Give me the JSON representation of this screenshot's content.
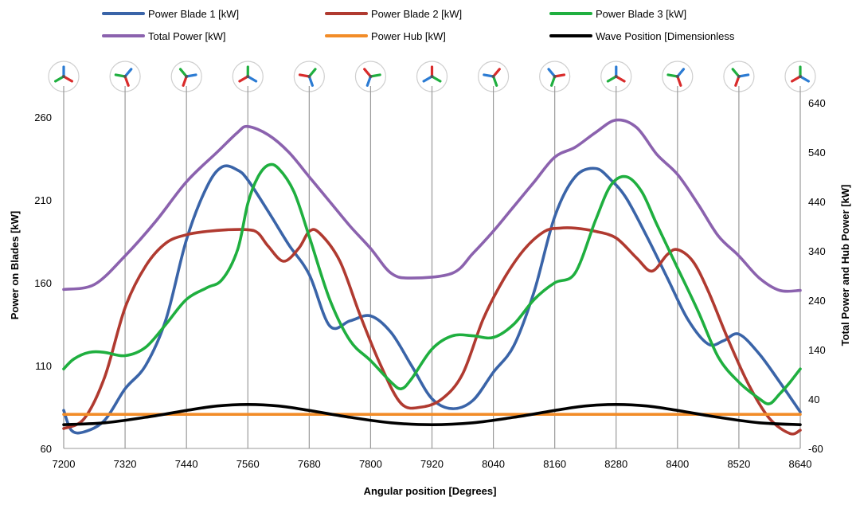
{
  "chart_data": {
    "type": "line",
    "xlabel": "Angular position [Degrees]",
    "ylabel_left": "Power on Blades [kW]",
    "ylabel_right": "Total Power and Hub Power [kW]",
    "xlim": [
      7200,
      8640
    ],
    "ylim_left": [
      60,
      280
    ],
    "ylim_right": [
      -60,
      640
    ],
    "x_ticks": [
      7200,
      7320,
      7440,
      7560,
      7680,
      7800,
      7920,
      8040,
      8160,
      8280,
      8400,
      8520,
      8640
    ],
    "y_left_ticks": [
      60,
      110,
      160,
      210,
      260
    ],
    "y_right_ticks": [
      -60,
      40,
      140,
      240,
      340,
      440,
      540,
      640
    ],
    "grid_x": true,
    "legend_position": "top",
    "turbine_icons": 13,
    "series": [
      {
        "name": "Power Blade 1 [kW]",
        "color": "#3A64A8",
        "axis": "left",
        "x": [
          7200,
          7215,
          7240,
          7280,
          7320,
          7360,
          7400,
          7440,
          7480,
          7510,
          7540,
          7560,
          7600,
          7640,
          7680,
          7720,
          7760,
          7800,
          7840,
          7880,
          7920,
          7960,
          8000,
          8040,
          8080,
          8120,
          8160,
          8200,
          8240,
          8270,
          8300,
          8340,
          8380,
          8420,
          8460,
          8490,
          8520,
          8560,
          8600,
          8640
        ],
        "values": [
          83,
          71,
          70,
          77,
          96,
          110,
          138,
          186,
          218,
          230,
          228,
          222,
          203,
          183,
          165,
          134,
          137,
          140,
          130,
          110,
          90,
          84,
          89,
          106,
          122,
          155,
          200,
          224,
          229,
          222,
          211,
          188,
          163,
          138,
          123,
          125,
          129,
          117,
          100,
          82
        ]
      },
      {
        "name": "Power Blade 2 [kW]",
        "color": "#B03A30",
        "axis": "left",
        "x": [
          7200,
          7240,
          7280,
          7320,
          7360,
          7400,
          7440,
          7480,
          7520,
          7560,
          7580,
          7600,
          7630,
          7660,
          7680,
          7700,
          7740,
          7780,
          7820,
          7860,
          7900,
          7940,
          7980,
          8020,
          8060,
          8100,
          8140,
          8170,
          8200,
          8240,
          8280,
          8320,
          8350,
          8380,
          8400,
          8430,
          8460,
          8500,
          8540,
          8580,
          8620,
          8640
        ],
        "values": [
          72,
          78,
          103,
          145,
          170,
          184,
          189,
          191,
          192,
          192,
          190,
          182,
          173,
          181,
          191,
          190,
          173,
          140,
          110,
          87,
          85,
          90,
          105,
          138,
          162,
          180,
          191,
          193,
          193,
          191,
          187,
          175,
          167,
          177,
          180,
          173,
          155,
          125,
          98,
          78,
          69,
          71
        ]
      },
      {
        "name": "Power Blade 3 [kW]",
        "color": "#1FAF3F",
        "axis": "left",
        "x": [
          7200,
          7220,
          7250,
          7280,
          7320,
          7360,
          7400,
          7440,
          7480,
          7510,
          7540,
          7560,
          7580,
          7600,
          7620,
          7650,
          7680,
          7720,
          7760,
          7800,
          7840,
          7860,
          7880,
          7920,
          7960,
          8000,
          8040,
          8080,
          8120,
          8160,
          8200,
          8240,
          8270,
          8300,
          8330,
          8360,
          8400,
          8440,
          8480,
          8520,
          8560,
          8580,
          8600,
          8620,
          8640
        ],
        "values": [
          108,
          114,
          118,
          118,
          116,
          121,
          135,
          150,
          157,
          162,
          180,
          208,
          224,
          231,
          229,
          215,
          188,
          150,
          125,
          113,
          100,
          96,
          102,
          120,
          128,
          128,
          127,
          135,
          150,
          160,
          166,
          198,
          219,
          224,
          215,
          195,
          169,
          143,
          115,
          100,
          90,
          87,
          93,
          100,
          108
        ]
      },
      {
        "name": "Total Power [kW]",
        "color": "#8B62AE",
        "axis": "right",
        "x": [
          7200,
          7260,
          7320,
          7380,
          7440,
          7500,
          7540,
          7560,
          7600,
          7640,
          7680,
          7720,
          7760,
          7800,
          7840,
          7880,
          7960,
          8000,
          8040,
          8080,
          8120,
          8160,
          8200,
          8240,
          8280,
          8320,
          8360,
          8400,
          8440,
          8480,
          8520,
          8560,
          8600,
          8640
        ],
        "values": [
          262,
          272,
          330,
          400,
          480,
          540,
          580,
          592,
          575,
          540,
          490,
          440,
          390,
          345,
          295,
          285,
          295,
          335,
          380,
          430,
          480,
          530,
          550,
          580,
          605,
          590,
          535,
          495,
          435,
          370,
          330,
          285,
          260,
          260
        ]
      },
      {
        "name": "Power Hub [kW]",
        "color": "#F28C28",
        "axis": "right",
        "x": [
          7200,
          8640
        ],
        "values": [
          9,
          9
        ]
      },
      {
        "name": "Wave Position [Dimensionless",
        "color": "#000000",
        "axis": "right",
        "x": [
          7200,
          7280,
          7360,
          7440,
          7500,
          7560,
          7620,
          7680,
          7760,
          7840,
          7920,
          8000,
          8080,
          8160,
          8220,
          8280,
          8340,
          8400,
          8480,
          8560,
          8640
        ],
        "values": [
          -12,
          -8,
          3,
          17,
          26,
          29,
          26,
          17,
          3,
          -8,
          -12,
          -8,
          3,
          17,
          26,
          29,
          26,
          17,
          3,
          -8,
          -12
        ]
      }
    ]
  }
}
